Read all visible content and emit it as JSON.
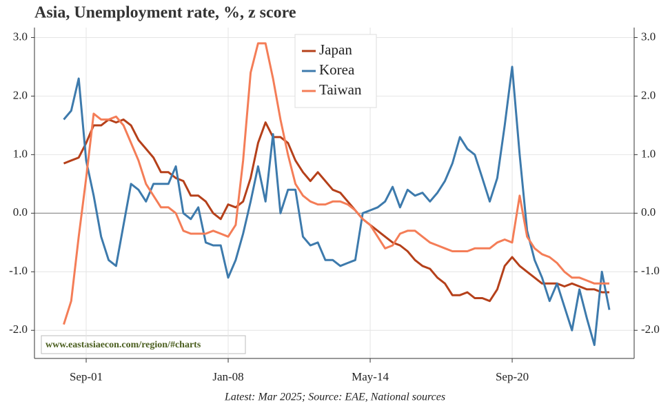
{
  "chart_data": {
    "type": "line",
    "title": "Asia, Unemployment rate, %, z score",
    "watermark": "www.eastasiaecon.com/region/#charts",
    "source": "Latest: Mar 2025; Source: EAE, National sources",
    "categories": [
      null,
      null,
      null,
      "Sep-01",
      null,
      null,
      null,
      null,
      null,
      null,
      null,
      null,
      null,
      null,
      null,
      null,
      null,
      null,
      null,
      null,
      null,
      null,
      "Jan-08",
      null,
      null,
      null,
      null,
      null,
      null,
      null,
      null,
      null,
      null,
      null,
      null,
      null,
      null,
      null,
      null,
      null,
      null,
      "May-14",
      null,
      null,
      null,
      null,
      null,
      null,
      null,
      null,
      null,
      null,
      null,
      null,
      null,
      null,
      null,
      null,
      null,
      null,
      "Sep-20",
      null,
      null,
      null,
      null,
      null,
      null,
      null,
      null,
      null,
      null,
      null,
      null,
      null
    ],
    "ylim": [
      -2.48,
      3.17
    ],
    "yticks": [
      {
        "value": -2,
        "label": "-2.0"
      },
      {
        "value": -1,
        "label": "-1.0"
      },
      {
        "value": 0,
        "label": "0.0"
      },
      {
        "value": 1,
        "label": "1.0"
      },
      {
        "value": 2,
        "label": "2.0"
      },
      {
        "value": 3,
        "label": "3.0"
      }
    ],
    "grid": true,
    "legend": "top-center",
    "series": [
      {
        "name": "Japan",
        "color": "#b5401a",
        "values": [
          0.85,
          0.9,
          0.95,
          1.2,
          1.5,
          1.5,
          1.6,
          1.55,
          1.6,
          1.5,
          1.25,
          1.1,
          0.95,
          0.7,
          0.7,
          0.6,
          0.55,
          0.3,
          0.3,
          0.2,
          0.0,
          -0.1,
          0.15,
          0.1,
          0.2,
          0.6,
          1.2,
          1.55,
          1.3,
          1.3,
          1.2,
          0.9,
          0.7,
          0.55,
          0.7,
          0.55,
          0.4,
          0.35,
          0.2,
          0.05,
          -0.1,
          -0.2,
          -0.3,
          -0.4,
          -0.5,
          -0.55,
          -0.65,
          -0.8,
          -0.9,
          -0.95,
          -1.1,
          -1.2,
          -1.4,
          -1.4,
          -1.35,
          -1.45,
          -1.45,
          -1.5,
          -1.3,
          -0.9,
          -0.75,
          -0.9,
          -1.0,
          -1.1,
          -1.2,
          -1.2,
          -1.2,
          -1.25,
          -1.2,
          -1.25,
          -1.3,
          -1.3,
          -1.35,
          -1.35
        ]
      },
      {
        "name": "Korea",
        "color": "#3d7aac",
        "values": [
          1.6,
          1.75,
          2.3,
          0.9,
          0.3,
          -0.4,
          -0.8,
          -0.9,
          -0.2,
          0.5,
          0.4,
          0.2,
          0.5,
          0.5,
          0.5,
          0.8,
          0.0,
          -0.1,
          0.1,
          -0.5,
          -0.55,
          -0.55,
          -1.1,
          -0.8,
          -0.35,
          0.2,
          0.8,
          0.2,
          1.35,
          0.0,
          0.4,
          0.4,
          -0.4,
          -0.55,
          -0.5,
          -0.8,
          -0.8,
          -0.9,
          -0.85,
          -0.8,
          0.0,
          0.05,
          0.1,
          0.2,
          0.45,
          0.1,
          0.4,
          0.3,
          0.35,
          0.2,
          0.35,
          0.55,
          0.85,
          1.3,
          1.1,
          1.0,
          0.6,
          0.2,
          0.6,
          1.5,
          2.5,
          1.0,
          -0.3,
          -0.8,
          -1.1,
          -1.5,
          -1.2,
          -1.6,
          -2.0,
          -1.3,
          -1.8,
          -2.25,
          -1.0,
          -1.65
        ]
      },
      {
        "name": "Taiwan",
        "color": "#f47d57",
        "values": [
          -1.9,
          -1.5,
          -0.4,
          0.6,
          1.7,
          1.6,
          1.6,
          1.65,
          1.5,
          1.2,
          0.9,
          0.5,
          0.3,
          0.1,
          0.1,
          0.0,
          -0.3,
          -0.35,
          -0.35,
          -0.35,
          -0.3,
          -0.35,
          -0.4,
          -0.2,
          0.9,
          2.4,
          2.9,
          2.9,
          2.3,
          1.6,
          1.0,
          0.5,
          0.3,
          0.2,
          0.15,
          0.15,
          0.2,
          0.2,
          0.15,
          0.05,
          -0.1,
          -0.2,
          -0.4,
          -0.6,
          -0.55,
          -0.35,
          -0.3,
          -0.3,
          -0.4,
          -0.5,
          -0.55,
          -0.6,
          -0.65,
          -0.65,
          -0.65,
          -0.6,
          -0.6,
          -0.6,
          -0.5,
          -0.45,
          -0.5,
          0.3,
          -0.4,
          -0.6,
          -0.7,
          -0.75,
          -0.85,
          -1.0,
          -1.1,
          -1.1,
          -1.15,
          -1.2,
          -1.2,
          -1.2
        ]
      }
    ]
  }
}
